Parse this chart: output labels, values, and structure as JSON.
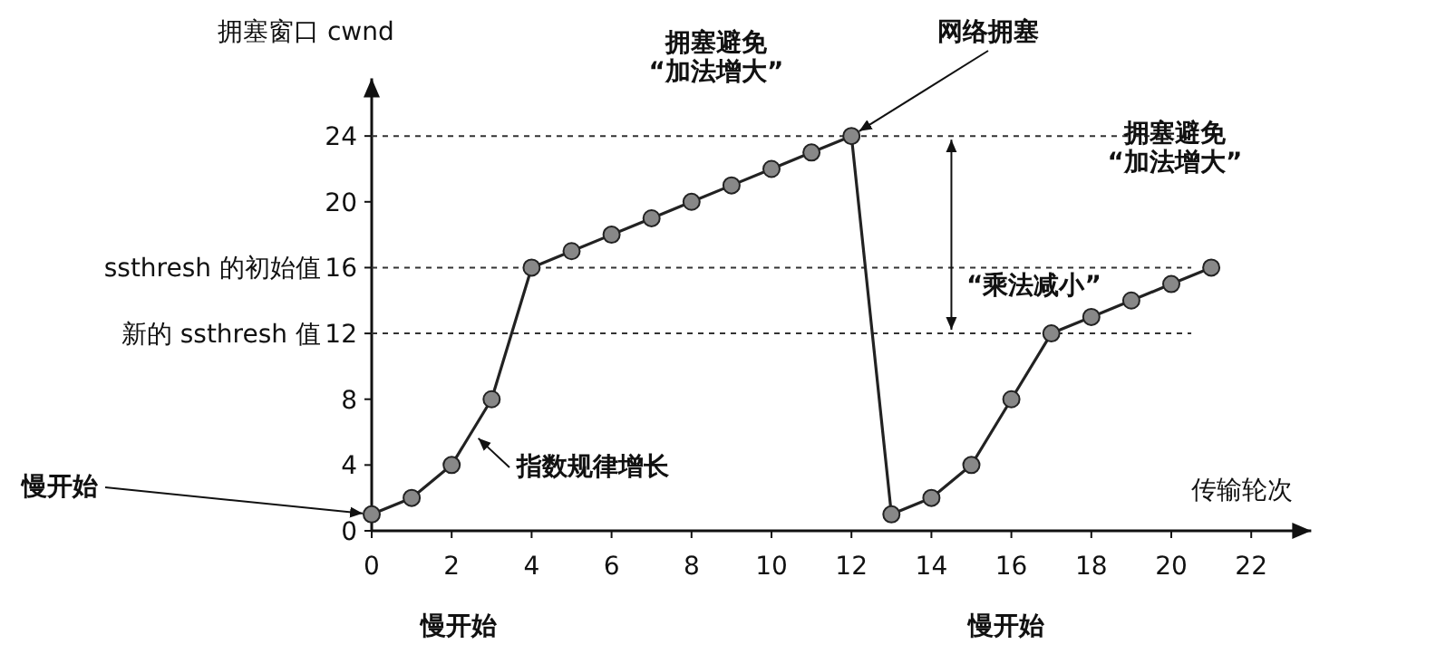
{
  "chart_data": {
    "type": "line",
    "xlabel": "传输轮次",
    "ylabel": "拥塞窗口 cwnd",
    "x": [
      0,
      1,
      2,
      3,
      4,
      5,
      6,
      7,
      8,
      9,
      10,
      11,
      12,
      13,
      14,
      15,
      16,
      17,
      18,
      19,
      20,
      21
    ],
    "values": [
      1,
      2,
      4,
      8,
      16,
      17,
      18,
      19,
      20,
      21,
      22,
      23,
      24,
      1,
      2,
      4,
      8,
      12,
      13,
      14,
      15,
      16
    ],
    "color": "#222222",
    "marker": "circle",
    "line_style": "solid",
    "grid": false,
    "legend": false,
    "xlim": [
      0,
      23.5
    ],
    "ylim": [
      0,
      27.5
    ],
    "xticks": [
      0,
      2,
      4,
      6,
      8,
      10,
      12,
      14,
      16,
      18,
      20,
      22
    ],
    "yticks": [
      0,
      4,
      8,
      12,
      16,
      20,
      24
    ],
    "ref_lines": [
      {
        "axis": "y",
        "value": 24,
        "line_style": "dashed"
      },
      {
        "axis": "y",
        "value": 16,
        "label": "ssthresh 的初始值",
        "line_style": "dashed"
      },
      {
        "axis": "y",
        "value": 12,
        "label": "新的 ssthresh 值",
        "line_style": "dashed"
      }
    ],
    "annotations": [
      "拥塞避免\n“加法增大”",
      {
        "text": "网络拥塞",
        "x": 12,
        "y": 24
      },
      "“乘法减小”",
      "拥塞避免\n“加法增大”",
      {
        "text": "指数规律增长",
        "x": 2.5,
        "y": 6
      },
      {
        "text": "慢开始",
        "x": 0,
        "y": 1
      },
      "慢开始",
      "慢开始"
    ]
  }
}
